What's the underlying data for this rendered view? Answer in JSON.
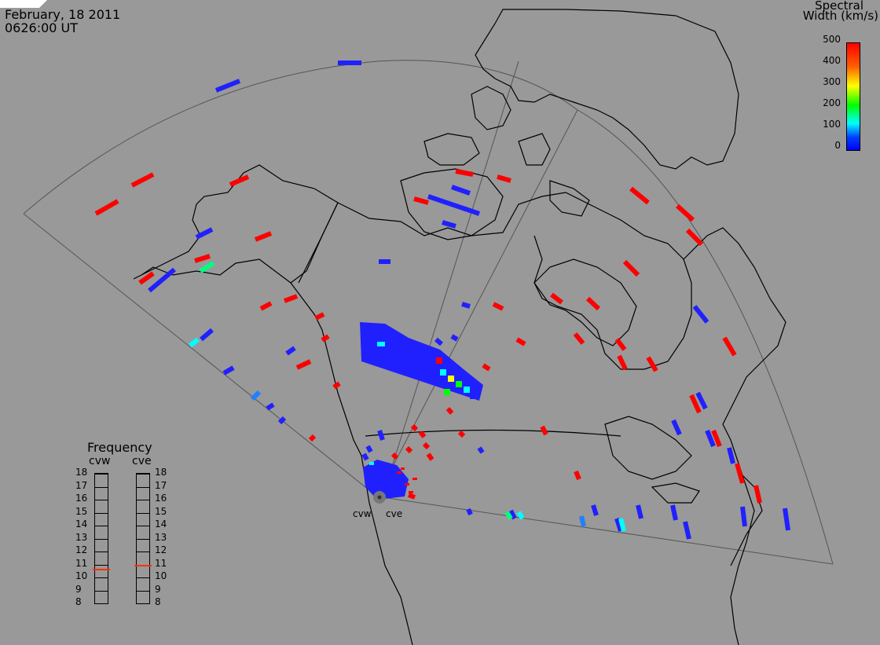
{
  "header": {
    "date": "February, 18 2011",
    "time": "0626:00 UT"
  },
  "colorbar": {
    "title_line1": "Spectral",
    "title_line2": "Width (km/s)",
    "ticks": [
      "500",
      "400",
      "300",
      "200",
      "100",
      "0"
    ],
    "colors": [
      "#ff0000",
      "#ff8000",
      "#ffff00",
      "#00ff00",
      "#00ffff",
      "#0000ff"
    ]
  },
  "frequency": {
    "title": "Frequency",
    "left_label": "cvw",
    "right_label": "cve",
    "ticks": [
      "18",
      "17",
      "16",
      "15",
      "14",
      "13",
      "12",
      "11",
      "10",
      "9",
      "8"
    ],
    "cvw_value": 10.6,
    "cve_value": 10.9,
    "marker_color": "#ff3300"
  },
  "radars": {
    "west_label": "cvw",
    "east_label": "cve"
  },
  "colors": {
    "background": "#999999",
    "coastline": "#000000",
    "fov_outline": "#555555",
    "low_width": "#2020ff",
    "high_width": "#ff0000",
    "mid_width": "#00ffff"
  }
}
